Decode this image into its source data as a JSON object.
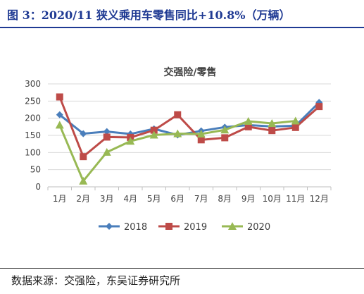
{
  "figure": {
    "title": "图 3：2020/11 狭义乘用车零售同比+10.8%（万辆）",
    "source": "数据来源：交强险，东吴证券研究所"
  },
  "chart_data": {
    "type": "line",
    "title": "交强险/零售",
    "categories": [
      "1月",
      "2月",
      "3月",
      "4月",
      "5月",
      "6月",
      "7月",
      "8月",
      "9月",
      "10月",
      "11月",
      "12月"
    ],
    "ylim": [
      0,
      300
    ],
    "yticks": [
      0,
      50,
      100,
      150,
      200,
      250,
      300
    ],
    "grid": true,
    "legend_position": "bottom",
    "series": [
      {
        "name": "2018",
        "color": "#4a7ebb",
        "marker": "diamond",
        "values": [
          210,
          155,
          161,
          154,
          169,
          151,
          163,
          174,
          180,
          176,
          178,
          246
        ]
      },
      {
        "name": "2019",
        "color": "#be4b48",
        "marker": "square",
        "values": [
          262,
          88,
          145,
          144,
          165,
          210,
          137,
          143,
          175,
          164,
          173,
          234
        ]
      },
      {
        "name": "2020",
        "color": "#98b954",
        "marker": "triangle",
        "values": [
          180,
          17,
          101,
          133,
          151,
          155,
          154,
          166,
          191,
          185,
          192,
          null
        ]
      }
    ]
  }
}
